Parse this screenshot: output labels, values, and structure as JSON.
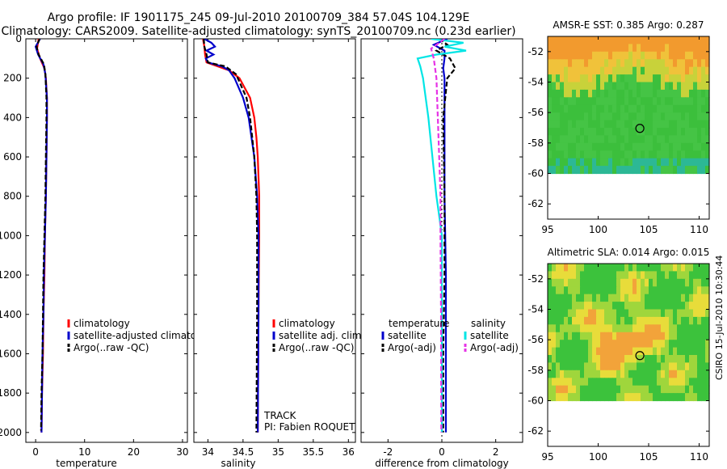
{
  "header": {
    "line1": "Argo profile: IF 1901175_245 09-Jul-2010 20100709_384 57.04S 104.129E",
    "line2": "Climatology: CARS2009. Satellite-adjusted climatology: synTS_20100709.nc (0.23d earlier)"
  },
  "stamp": "CSIRO 15-Jul-2010 10:30:44",
  "colors": {
    "red": "#ff0000",
    "blue": "#0000cc",
    "black": "#000000",
    "cyan": "#00e5e5",
    "magenta": "#e633e6",
    "mapGreen": "#3cc23c",
    "mapOrange": "#f2a33a"
  },
  "chart_data": [
    {
      "id": "temperature",
      "type": "line",
      "xlabel": "temperature",
      "ylabel": "",
      "xlim": [
        -2,
        31
      ],
      "ylim": [
        2050,
        0
      ],
      "xticks": [
        0,
        10,
        20,
        30
      ],
      "xtick_labels": [
        "0",
        "10",
        "20",
        "30"
      ],
      "yticks": [
        0,
        200,
        400,
        600,
        800,
        1000,
        1200,
        1400,
        1600,
        1800,
        2000
      ],
      "ytick_labels": [
        "0",
        "200",
        "400",
        "600",
        "800",
        "1000",
        "1200",
        "1400",
        "1600",
        "1800",
        "2000"
      ],
      "legend": [
        "climatology",
        "satellite-adjusted climatology",
        "Argo(..raw -QC)"
      ],
      "legend_colors": [
        "red",
        "blue",
        "black"
      ],
      "series": [
        {
          "name": "climatology",
          "color": "red",
          "style": "solid",
          "depth": [
            0,
            50,
            100,
            150,
            200,
            300,
            400,
            600,
            800,
            1000,
            1200,
            1400,
            1600,
            1800,
            2000
          ],
          "values": [
            0.6,
            0.3,
            0.9,
            1.8,
            2.1,
            2.3,
            2.3,
            2.2,
            2.1,
            1.9,
            1.8,
            1.6,
            1.5,
            1.3,
            1.2
          ]
        },
        {
          "name": "satellite-adjusted climatology",
          "color": "blue",
          "style": "solid",
          "depth": [
            0,
            40,
            80,
            130,
            180,
            300,
            400,
            600,
            800,
            1000,
            1200,
            1400,
            1600,
            1800,
            2000
          ],
          "values": [
            0.9,
            0.0,
            0.5,
            1.6,
            2.0,
            2.3,
            2.3,
            2.2,
            2.1,
            1.9,
            1.7,
            1.6,
            1.4,
            1.3,
            1.2
          ]
        },
        {
          "name": "Argo(..raw -QC)",
          "color": "black",
          "style": "dashed",
          "depth": [
            0,
            40,
            80,
            130,
            180,
            300,
            400,
            600,
            800,
            1000,
            1200,
            1400,
            1600,
            1800,
            1990
          ],
          "values": [
            0.8,
            0.2,
            0.6,
            1.7,
            2.0,
            2.2,
            2.2,
            2.1,
            2.0,
            1.8,
            1.6,
            1.5,
            1.4,
            1.2,
            1.1
          ]
        }
      ]
    },
    {
      "id": "salinity",
      "type": "line",
      "xlabel": "salinity",
      "ylabel": "",
      "xlim": [
        33.8,
        36.1
      ],
      "ylim": [
        2050,
        0
      ],
      "xticks": [
        34,
        34.5,
        35,
        35.5,
        36
      ],
      "xtick_labels": [
        "34",
        "34.5",
        "35",
        "35.5",
        "36"
      ],
      "legend": [
        "climatology",
        "satellite adj. clim.",
        "Argo(..raw -QC)"
      ],
      "legend_colors": [
        "red",
        "blue",
        "black"
      ],
      "annotations": [
        "TRACK",
        "PI: Fabien ROQUET"
      ],
      "series": [
        {
          "name": "climatology",
          "color": "red",
          "style": "solid",
          "depth": [
            0,
            40,
            80,
            120,
            160,
            200,
            300,
            400,
            500,
            600,
            800,
            1000,
            1400,
            2000
          ],
          "values": [
            33.93,
            33.95,
            33.96,
            33.98,
            34.3,
            34.45,
            34.6,
            34.66,
            34.69,
            34.71,
            34.73,
            34.73,
            34.72,
            34.71
          ]
        },
        {
          "name": "satellite adj. clim.",
          "color": "blue",
          "style": "solid",
          "depth": [
            0,
            20,
            40,
            60,
            80,
            100,
            120,
            140,
            160,
            200,
            300,
            400,
            500,
            600,
            800,
            1000,
            1400,
            2000
          ],
          "values": [
            33.95,
            34.05,
            34.1,
            33.98,
            34.08,
            33.97,
            34.0,
            34.2,
            34.3,
            34.38,
            34.5,
            34.58,
            34.62,
            34.66,
            34.7,
            34.72,
            34.72,
            34.71
          ]
        },
        {
          "name": "Argo(..raw -QC)",
          "color": "black",
          "style": "dashed",
          "depth": [
            0,
            40,
            80,
            120,
            140,
            180,
            300,
            400,
            600,
            800,
            1000,
            1400,
            2000
          ],
          "values": [
            33.94,
            33.95,
            33.98,
            34.0,
            34.25,
            34.4,
            34.55,
            34.6,
            34.66,
            34.69,
            34.7,
            34.7,
            34.69
          ]
        }
      ]
    },
    {
      "id": "difference",
      "type": "line",
      "xlabel": "difference from climatology",
      "ylabel": "",
      "xlim": [
        -3,
        3
      ],
      "ylim": [
        2050,
        0
      ],
      "xticks": [
        -2,
        0,
        2
      ],
      "xtick_labels": [
        "-2",
        "0",
        "2"
      ],
      "legend_groups": [
        {
          "title": "temperature",
          "items": [
            "satellite",
            "Argo(-adj)"
          ],
          "colors": [
            "blue",
            "black"
          ]
        },
        {
          "title": "salinity",
          "items": [
            "satellite",
            "Argo(-adj)"
          ],
          "colors": [
            "cyan",
            "magenta"
          ]
        }
      ],
      "series": [
        {
          "name": "temperature satellite",
          "color": "blue",
          "style": "solid",
          "depth": [
            0,
            30,
            60,
            100,
            150,
            200,
            400,
            800,
            1200,
            1600,
            2000
          ],
          "values": [
            0.2,
            -0.3,
            0.1,
            0.1,
            0.05,
            0.1,
            0.1,
            0.1,
            0.15,
            0.15,
            0.15
          ]
        },
        {
          "name": "temperature Argo(-adj)",
          "color": "black",
          "style": "dashed",
          "depth": [
            0,
            30,
            60,
            100,
            150,
            200,
            400,
            800,
            1200,
            1600,
            2000
          ],
          "values": [
            -0.1,
            0.2,
            -0.2,
            0.3,
            0.5,
            0.2,
            0.05,
            0.1,
            0.1,
            0.05,
            0.05
          ]
        },
        {
          "name": "salinity satellite",
          "color": "cyan",
          "style": "solid",
          "depth": [
            0,
            20,
            40,
            60,
            80,
            100,
            140,
            200,
            400,
            600,
            800,
            900,
            1000,
            1400,
            2000
          ],
          "values": [
            -0.4,
            0.8,
            0.1,
            0.9,
            -0.2,
            -0.9,
            -0.8,
            -0.7,
            -0.5,
            -0.35,
            -0.2,
            -0.1,
            0.0,
            0.0,
            0.0
          ]
        },
        {
          "name": "salinity Argo(-adj)",
          "color": "magenta",
          "style": "dashed",
          "depth": [
            0,
            50,
            100,
            200,
            400,
            600,
            800,
            1000,
            1400,
            2000
          ],
          "values": [
            0.1,
            -0.4,
            -0.3,
            -0.2,
            -0.15,
            -0.1,
            -0.05,
            -0.05,
            -0.03,
            -0.02
          ]
        }
      ]
    },
    {
      "id": "sst-map",
      "type": "heatmap",
      "title": "AMSR-E SST: 0.385 Argo: 0.287",
      "xlim": [
        95,
        111
      ],
      "ylim": [
        -63,
        -51
      ],
      "xticks": [
        95,
        100,
        105,
        110
      ],
      "xtick_labels": [
        "95",
        "100",
        "105",
        "110"
      ],
      "yticks": [
        -52,
        -54,
        -56,
        -58,
        -60,
        -62
      ],
      "ytick_labels": [
        "-52",
        "-54",
        "-56",
        "-58",
        "-60",
        "-62"
      ],
      "data_latitude_range": [
        -51,
        -60
      ],
      "argo_position": {
        "lon": 104.129,
        "lat": -57.04
      },
      "field_description": "warm (orange) band north of ~54.5S, green/teal to the south"
    },
    {
      "id": "sla-map",
      "type": "heatmap",
      "title": "Altimetric SLA: 0.014 Argo: 0.015",
      "xlim": [
        95,
        111
      ],
      "ylim": [
        -63,
        -51
      ],
      "xticks": [
        95,
        100,
        105,
        110
      ],
      "xtick_labels": [
        "95",
        "100",
        "105",
        "110"
      ],
      "yticks": [
        -52,
        -54,
        -56,
        -58,
        -60,
        -62
      ],
      "ytick_labels": [
        "-52",
        "-54",
        "-56",
        "-58",
        "-60",
        "-62"
      ],
      "data_latitude_range": [
        -51,
        -60
      ],
      "argo_position": {
        "lon": 104.129,
        "lat": -57.04
      },
      "field_description": "mottled green and yellow anomalies with an orange patch near 102E 55.5S"
    }
  ]
}
